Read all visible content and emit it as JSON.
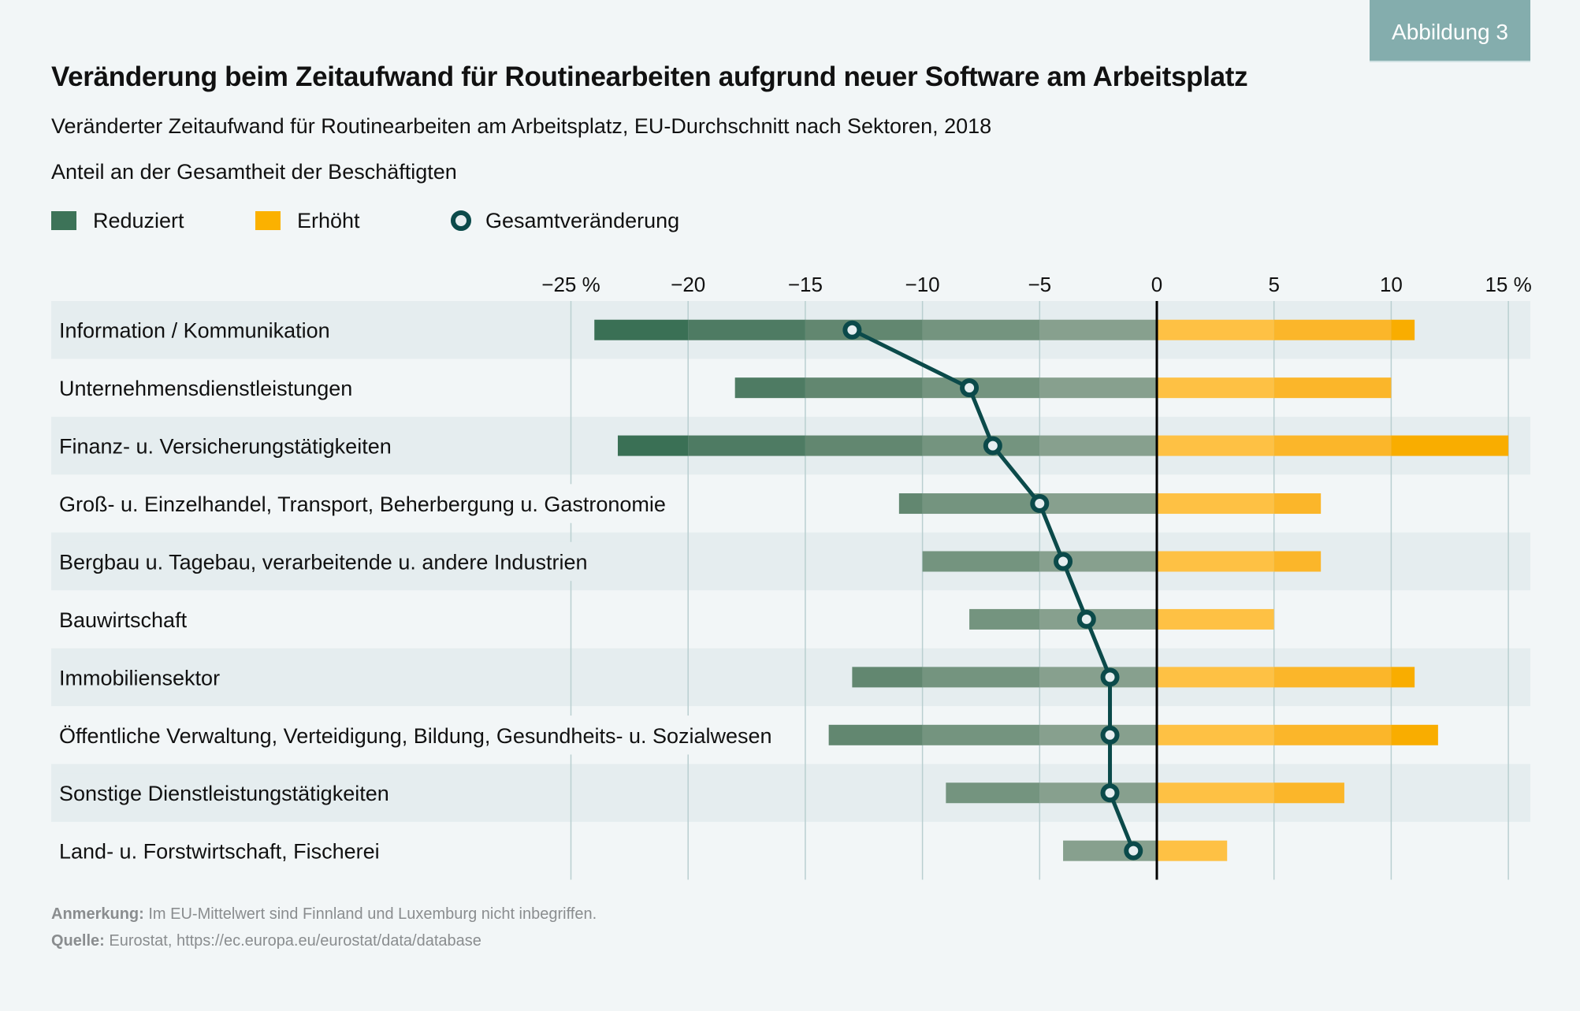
{
  "badge": "Abbildung 3",
  "title": "Veränderung beim Zeitaufwand für Routinearbeiten aufgrund neuer Software am Arbeitsplatz",
  "subtitle": "Veränderter Zeitaufwand für Routinearbeiten am Arbeitsplatz, EU-Durchschnitt nach Sektoren, 2018",
  "unit_label": "Anteil an der Gesamtheit der Beschäftigten",
  "legend": {
    "reduced": "Reduziert",
    "increased": "Erhöht",
    "total": "Gesamtveränderung"
  },
  "colors": {
    "reduced_segments": [
      "#87a08e",
      "#74947f",
      "#628770",
      "#4e7b63",
      "#3a7055"
    ],
    "increased_segments": [
      "#fec144",
      "#fbb62a",
      "#f9ad00"
    ],
    "legend_reduced": "#3d7358",
    "legend_increased": "#fbb100",
    "marker": "#0b4a4a",
    "marker_fill": "#e6eef0",
    "band": "#e5edef",
    "grid": "#b9cfd0",
    "badge": "#84adad"
  },
  "footer": {
    "note_label": "Anmerkung:",
    "note_text": " Im EU-Mittelwert sind Finnland und Luxemburg nicht inbegriffen.",
    "source_label": "Quelle:",
    "source_text": " Eurostat, https://ec.europa.eu/eurostat/data/database"
  },
  "chart_data": {
    "type": "bar",
    "orientation": "horizontal",
    "title": "Veränderung beim Zeitaufwand für Routinearbeiten aufgrund neuer Software am Arbeitsplatz",
    "xlabel": "",
    "ylabel": "",
    "xlim": [
      -25,
      15
    ],
    "xticks": [
      -25,
      -20,
      -15,
      -10,
      -5,
      0,
      5,
      10,
      15
    ],
    "xtick_labels": [
      "−25 %",
      "−20",
      "−15",
      "−10",
      "−5",
      "0",
      "5",
      "10",
      "15 %"
    ],
    "grid": true,
    "legend_position": "top-left",
    "categories": [
      "Information / Kommunikation",
      "Unternehmensdienstleistungen",
      "Finanz- u. Versicherungstätigkeiten",
      "Groß- u. Einzelhandel, Transport, Beherbergung u. Gastronomie",
      "Bergbau u. Tagebau, verarbeitende u. andere Industrien",
      "Bauwirtschaft",
      "Immobiliensektor",
      "Öffentliche Verwaltung, Verteidigung, Bildung, Gesundheits- u. Sozialwesen",
      "Sonstige Dienstleistungstätigkeiten",
      "Land- u. Forstwirtschaft, Fischerei"
    ],
    "series": [
      {
        "name": "Reduziert",
        "type": "bar",
        "values": [
          -24,
          -18,
          -23,
          -11,
          -10,
          -8,
          -13,
          -14,
          -9,
          -4
        ]
      },
      {
        "name": "Erhöht",
        "type": "bar",
        "values": [
          11,
          10,
          15,
          7,
          7,
          5,
          11,
          12,
          8,
          3
        ]
      },
      {
        "name": "Gesamtveränderung",
        "type": "line-markers",
        "values": [
          -13,
          -8,
          -7,
          -5,
          -4,
          -3,
          -2,
          -2,
          -2,
          -1
        ]
      }
    ]
  }
}
